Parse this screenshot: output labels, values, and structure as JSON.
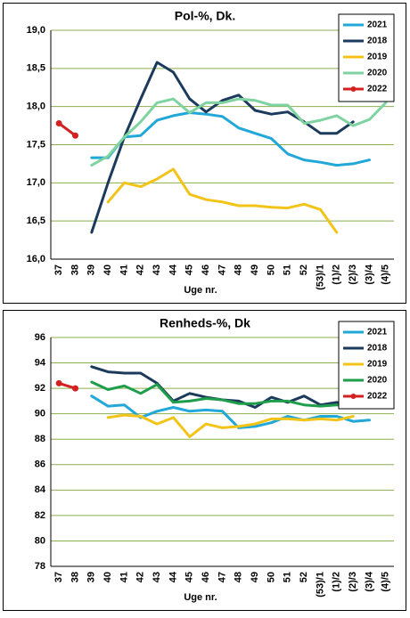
{
  "chart_data": [
    {
      "type": "line",
      "title": "Pol-%, Dk.",
      "x_label": "Uge nr.",
      "categories": [
        "37",
        "38",
        "39",
        "40",
        "41",
        "42",
        "43",
        "44",
        "45",
        "46",
        "47",
        "48",
        "49",
        "50",
        "51",
        "52",
        "(53)/1",
        "(1)/2",
        "(2)/3",
        "(3)/4",
        "(4)/5"
      ],
      "ylim": [
        16,
        19
      ],
      "yticks": [
        {
          "value": 16,
          "label": "16,0"
        },
        {
          "value": 16.5,
          "label": "16,5"
        },
        {
          "value": 17,
          "label": "17,0"
        },
        {
          "value": 17.5,
          "label": "17,5"
        },
        {
          "value": 18,
          "label": "18,0"
        },
        {
          "value": 18.5,
          "label": "18,5"
        },
        {
          "value": 19,
          "label": "19,0"
        }
      ],
      "grid": true,
      "legend": "upper right",
      "series": [
        {
          "name": "2021",
          "color": "#22a8d8",
          "values": [
            null,
            null,
            17.33,
            17.33,
            17.6,
            17.62,
            17.82,
            17.88,
            17.92,
            17.9,
            17.87,
            17.72,
            17.65,
            17.58,
            17.38,
            17.3,
            17.27,
            17.23,
            17.25,
            17.3,
            null
          ]
        },
        {
          "name": "2018",
          "color": "#1b3a5c",
          "values": [
            null,
            null,
            16.35,
            17.0,
            17.6,
            18.1,
            18.58,
            18.45,
            18.1,
            17.93,
            18.08,
            18.15,
            17.95,
            17.9,
            17.93,
            17.8,
            17.65,
            17.65,
            17.8,
            null,
            null
          ]
        },
        {
          "name": "2019",
          "color": "#f2c419",
          "values": [
            null,
            null,
            null,
            16.75,
            17.0,
            16.95,
            17.05,
            17.18,
            16.85,
            16.78,
            16.75,
            16.7,
            16.7,
            16.68,
            16.67,
            16.72,
            16.65,
            16.35,
            null,
            null,
            null
          ]
        },
        {
          "name": "2020",
          "color": "#7fd3a0",
          "values": [
            null,
            null,
            17.23,
            17.35,
            17.6,
            17.8,
            18.05,
            18.1,
            17.92,
            18.05,
            18.05,
            18.1,
            18.08,
            18.02,
            18.02,
            17.78,
            17.82,
            17.88,
            17.75,
            17.83,
            18.05
          ]
        },
        {
          "name": "2022",
          "color": "#d42020",
          "marker": true,
          "values": [
            17.78,
            17.62,
            null,
            null,
            null,
            null,
            null,
            null,
            null,
            null,
            null,
            null,
            null,
            null,
            null,
            null,
            null,
            null,
            null,
            null,
            null
          ]
        }
      ]
    },
    {
      "type": "line",
      "title": "Renheds-%, Dk",
      "x_label": "Uge nr.",
      "categories": [
        "37",
        "38",
        "39",
        "40",
        "41",
        "42",
        "43",
        "44",
        "45",
        "46",
        "47",
        "48",
        "49",
        "50",
        "51",
        "52",
        "(53)/1",
        "(1)/2",
        "(2)/3",
        "(3)/4",
        "(4)/5"
      ],
      "ylim": [
        78,
        96
      ],
      "yticks": [
        78,
        80,
        82,
        84,
        86,
        88,
        90,
        92,
        94,
        96
      ],
      "grid": true,
      "legend": "upper right",
      "series": [
        {
          "name": "2021",
          "color": "#22a8d8",
          "values": [
            null,
            null,
            91.4,
            90.6,
            90.7,
            89.7,
            90.2,
            90.5,
            90.2,
            90.3,
            90.2,
            88.9,
            89.0,
            89.3,
            89.8,
            89.5,
            89.8,
            89.8,
            89.4,
            89.5,
            null
          ]
        },
        {
          "name": "2018",
          "color": "#1b3a5c",
          "values": [
            null,
            null,
            93.7,
            93.3,
            93.2,
            93.2,
            92.4,
            91.0,
            91.6,
            91.3,
            91.1,
            91.0,
            90.5,
            91.3,
            90.9,
            91.4,
            90.7,
            90.9,
            90.6,
            null,
            null
          ]
        },
        {
          "name": "2019",
          "color": "#f2c419",
          "values": [
            null,
            null,
            null,
            89.7,
            89.9,
            89.8,
            89.2,
            89.7,
            88.2,
            89.2,
            88.9,
            89.0,
            89.2,
            89.6,
            89.6,
            89.5,
            89.6,
            89.5,
            89.8,
            null,
            null
          ]
        },
        {
          "name": "2020",
          "color": "#1e9e4a",
          "values": [
            null,
            null,
            92.5,
            91.9,
            92.2,
            91.6,
            92.3,
            90.9,
            91.0,
            91.2,
            91.1,
            90.8,
            90.8,
            91.0,
            91.0,
            90.7,
            90.6,
            90.7,
            90.5,
            90.5,
            90.8
          ]
        },
        {
          "name": "2022",
          "color": "#d42020",
          "marker": true,
          "values": [
            92.4,
            92.0,
            null,
            null,
            null,
            null,
            null,
            null,
            null,
            null,
            null,
            null,
            null,
            null,
            null,
            null,
            null,
            null,
            null,
            null,
            null
          ]
        }
      ]
    }
  ]
}
